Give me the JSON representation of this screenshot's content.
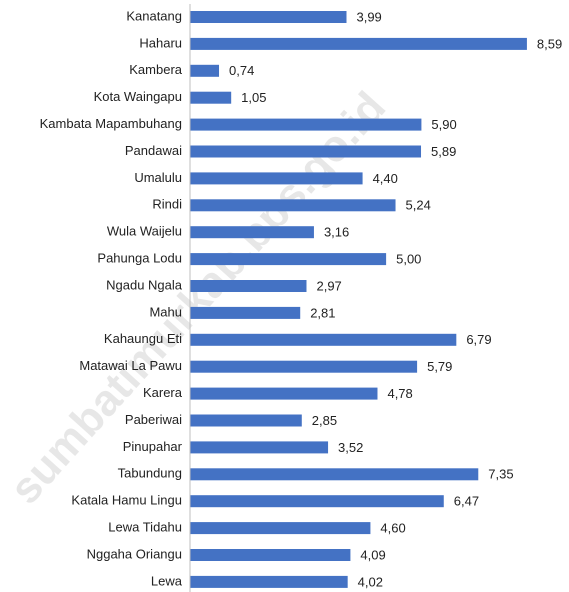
{
  "chart_data": {
    "type": "bar",
    "orientation": "horizontal",
    "categories": [
      "Kanatang",
      "Haharu",
      "Kambera",
      "Kota Waingapu",
      "Kambata Mapambuhang",
      "Pandawai",
      "Umalulu",
      "Rindi",
      "Wula Waijelu",
      "Pahunga Lodu",
      "Ngadu Ngala",
      "Mahu",
      "Kahaungu Eti",
      "Matawai La Pawu",
      "Karera",
      "Paberiwai",
      "Pinupahar",
      "Tabundung",
      "Katala Hamu Lingu",
      "Lewa Tidahu",
      "Nggaha Oriangu",
      "Lewa"
    ],
    "values": [
      3.99,
      8.59,
      0.74,
      1.05,
      5.9,
      5.89,
      4.4,
      5.24,
      3.16,
      5.0,
      2.97,
      2.81,
      6.79,
      5.79,
      4.78,
      2.85,
      3.52,
      7.35,
      6.47,
      4.6,
      4.09,
      4.02
    ],
    "value_labels": [
      "3,99",
      "8,59",
      "0,74",
      "1,05",
      "5,90",
      "5,89",
      "4,40",
      "5,24",
      "3,16",
      "5,00",
      "2,97",
      "2,81",
      "6,79",
      "5,79",
      "4,78",
      "2,85",
      "3,52",
      "7,35",
      "6,47",
      "4,60",
      "4,09",
      "4,02"
    ],
    "color": "#4472c4",
    "xlim": [
      0,
      9
    ],
    "watermark": "sumbatimurkab.bps.go.id"
  }
}
